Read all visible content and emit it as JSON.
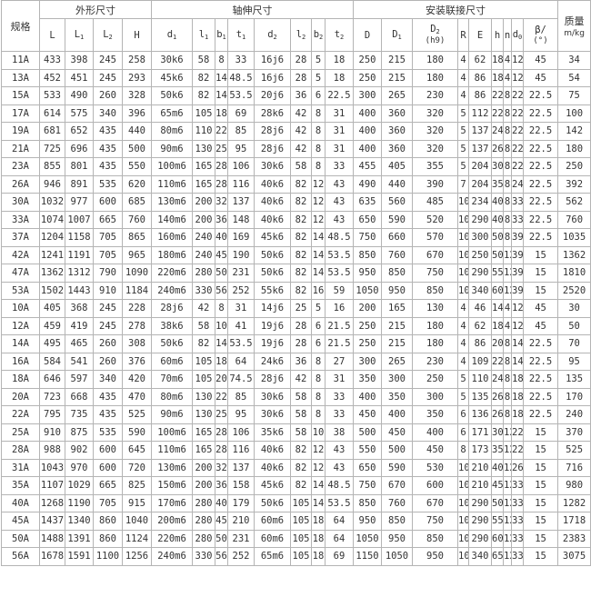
{
  "header": {
    "spec": "规格",
    "groups": {
      "outline": "外形尺寸",
      "shaft": "轴伸尺寸",
      "mount": "安装联接尺寸"
    },
    "mass_title": "质量",
    "mass_unit": "m/kg",
    "columns": [
      {
        "base": "L",
        "sub": ""
      },
      {
        "base": "L",
        "sub": "1"
      },
      {
        "base": "L",
        "sub": "2"
      },
      {
        "base": "H",
        "sub": ""
      },
      {
        "base": "d",
        "sub": "1"
      },
      {
        "base": "l",
        "sub": "1"
      },
      {
        "base": "b",
        "sub": "1"
      },
      {
        "base": "t",
        "sub": "1"
      },
      {
        "base": "d",
        "sub": "2"
      },
      {
        "base": "l",
        "sub": "2"
      },
      {
        "base": "b",
        "sub": "2"
      },
      {
        "base": "t",
        "sub": "2"
      },
      {
        "base": "D",
        "sub": ""
      },
      {
        "base": "D",
        "sub": "1"
      },
      {
        "base": "D",
        "sub": "2",
        "line2": "(h9)"
      },
      {
        "base": "R",
        "sub": ""
      },
      {
        "base": "E",
        "sub": ""
      },
      {
        "base": "h",
        "sub": ""
      },
      {
        "base": "n",
        "sub": ""
      },
      {
        "base": "d",
        "sub": "0"
      },
      {
        "base": "β/",
        "sub": "",
        "line2": "(°)"
      }
    ]
  },
  "rows": [
    [
      "11A",
      "433",
      "398",
      "245",
      "258",
      "30k6",
      "58",
      "8",
      "33",
      "16j6",
      "28",
      "5",
      "18",
      "250",
      "215",
      "180",
      "4",
      "62",
      "18",
      "4",
      "12",
      "45",
      "34"
    ],
    [
      "13A",
      "452",
      "451",
      "245",
      "293",
      "45k6",
      "82",
      "14",
      "48.5",
      "16j6",
      "28",
      "5",
      "18",
      "250",
      "215",
      "180",
      "4",
      "86",
      "18",
      "4",
      "12",
      "45",
      "54"
    ],
    [
      "15A",
      "533",
      "490",
      "260",
      "328",
      "50k6",
      "82",
      "14",
      "53.5",
      "20j6",
      "36",
      "6",
      "22.5",
      "300",
      "265",
      "230",
      "4",
      "86",
      "22",
      "8",
      "22",
      "22.5",
      "75"
    ],
    [
      "17A",
      "614",
      "575",
      "340",
      "396",
      "65m6",
      "105",
      "18",
      "69",
      "28k6",
      "42",
      "8",
      "31",
      "400",
      "360",
      "320",
      "5",
      "112",
      "22",
      "8",
      "22",
      "22.5",
      "100"
    ],
    [
      "19A",
      "681",
      "652",
      "435",
      "440",
      "80m6",
      "110",
      "22",
      "85",
      "28j6",
      "42",
      "8",
      "31",
      "400",
      "360",
      "320",
      "5",
      "137",
      "24",
      "8",
      "22",
      "22.5",
      "142"
    ],
    [
      "21A",
      "725",
      "696",
      "435",
      "500",
      "90m6",
      "130",
      "25",
      "95",
      "28j6",
      "42",
      "8",
      "31",
      "400",
      "360",
      "320",
      "5",
      "137",
      "26",
      "8",
      "22",
      "22.5",
      "180"
    ],
    [
      "23A",
      "855",
      "801",
      "435",
      "550",
      "100m6",
      "165",
      "28",
      "106",
      "30k6",
      "58",
      "8",
      "33",
      "455",
      "405",
      "355",
      "5",
      "204",
      "30",
      "8",
      "22",
      "22.5",
      "250"
    ],
    [
      "26A",
      "946",
      "891",
      "535",
      "620",
      "110m6",
      "165",
      "28",
      "116",
      "40k6",
      "82",
      "12",
      "43",
      "490",
      "440",
      "390",
      "7",
      "204",
      "35",
      "8",
      "24",
      "22.5",
      "392"
    ],
    [
      "30A",
      "1032",
      "977",
      "600",
      "685",
      "130m6",
      "200",
      "32",
      "137",
      "40k6",
      "82",
      "12",
      "43",
      "635",
      "560",
      "485",
      "10",
      "234",
      "40",
      "8",
      "33",
      "22.5",
      "562"
    ],
    [
      "33A",
      "1074",
      "1007",
      "665",
      "760",
      "140m6",
      "200",
      "36",
      "148",
      "40k6",
      "82",
      "12",
      "43",
      "650",
      "590",
      "520",
      "10",
      "290",
      "40",
      "8",
      "33",
      "22.5",
      "760"
    ],
    [
      "37A",
      "1204",
      "1158",
      "705",
      "865",
      "160m6",
      "240",
      "40",
      "169",
      "45k6",
      "82",
      "14",
      "48.5",
      "750",
      "660",
      "570",
      "10",
      "300",
      "50",
      "8",
      "39",
      "22.5",
      "1035"
    ],
    [
      "42A",
      "1241",
      "1191",
      "705",
      "965",
      "180m6",
      "240",
      "45",
      "190",
      "50k6",
      "82",
      "14",
      "53.5",
      "850",
      "760",
      "670",
      "10",
      "250",
      "50",
      "12",
      "39",
      "15",
      "1362"
    ],
    [
      "47A",
      "1362",
      "1312",
      "790",
      "1090",
      "220m6",
      "280",
      "50",
      "231",
      "50k6",
      "82",
      "14",
      "53.5",
      "950",
      "850",
      "750",
      "10",
      "290",
      "55",
      "12",
      "39",
      "15",
      "1810"
    ],
    [
      "53A",
      "1502",
      "1443",
      "910",
      "1184",
      "240m6",
      "330",
      "56",
      "252",
      "55k6",
      "82",
      "16",
      "59",
      "1050",
      "950",
      "850",
      "10",
      "340",
      "60",
      "12",
      "39",
      "15",
      "2520"
    ],
    [
      "10A",
      "405",
      "368",
      "245",
      "228",
      "28j6",
      "42",
      "8",
      "31",
      "14j6",
      "25",
      "5",
      "16",
      "200",
      "165",
      "130",
      "4",
      "46",
      "14",
      "4",
      "12",
      "45",
      "30"
    ],
    [
      "12A",
      "459",
      "419",
      "245",
      "278",
      "38k6",
      "58",
      "10",
      "41",
      "19j6",
      "28",
      "6",
      "21.5",
      "250",
      "215",
      "180",
      "4",
      "62",
      "18",
      "4",
      "12",
      "45",
      "50"
    ],
    [
      "14A",
      "495",
      "465",
      "260",
      "308",
      "50k6",
      "82",
      "14",
      "53.5",
      "19j6",
      "28",
      "6",
      "21.5",
      "250",
      "215",
      "180",
      "4",
      "86",
      "20",
      "8",
      "14",
      "22.5",
      "70"
    ],
    [
      "16A",
      "584",
      "541",
      "260",
      "376",
      "60m6",
      "105",
      "18",
      "64",
      "24k6",
      "36",
      "8",
      "27",
      "300",
      "265",
      "230",
      "4",
      "109",
      "22",
      "8",
      "14",
      "22.5",
      "95"
    ],
    [
      "18A",
      "646",
      "597",
      "340",
      "420",
      "70m6",
      "105",
      "20",
      "74.5",
      "28j6",
      "42",
      "8",
      "31",
      "350",
      "300",
      "250",
      "5",
      "110",
      "24",
      "8",
      "18",
      "22.5",
      "135"
    ],
    [
      "20A",
      "723",
      "668",
      "435",
      "470",
      "80m6",
      "130",
      "22",
      "85",
      "30k6",
      "58",
      "8",
      "33",
      "400",
      "350",
      "300",
      "5",
      "135",
      "26",
      "8",
      "18",
      "22.5",
      "170"
    ],
    [
      "22A",
      "795",
      "735",
      "435",
      "525",
      "90m6",
      "130",
      "25",
      "95",
      "30k6",
      "58",
      "8",
      "33",
      "450",
      "400",
      "350",
      "6",
      "136",
      "26",
      "8",
      "18",
      "22.5",
      "240"
    ],
    [
      "25A",
      "910",
      "875",
      "535",
      "590",
      "100m6",
      "165",
      "28",
      "106",
      "35k6",
      "58",
      "10",
      "38",
      "500",
      "450",
      "400",
      "6",
      "171",
      "30",
      "12",
      "22",
      "15",
      "370"
    ],
    [
      "28A",
      "988",
      "902",
      "600",
      "645",
      "110m6",
      "165",
      "28",
      "116",
      "40k6",
      "82",
      "12",
      "43",
      "550",
      "500",
      "450",
      "8",
      "173",
      "35",
      "12",
      "22",
      "15",
      "525"
    ],
    [
      "31A",
      "1043",
      "970",
      "600",
      "720",
      "130m6",
      "200",
      "32",
      "137",
      "40k6",
      "82",
      "12",
      "43",
      "650",
      "590",
      "530",
      "10",
      "210",
      "40",
      "12",
      "26",
      "15",
      "716"
    ],
    [
      "35A",
      "1107",
      "1029",
      "665",
      "825",
      "150m6",
      "200",
      "36",
      "158",
      "45k6",
      "82",
      "14",
      "48.5",
      "750",
      "670",
      "600",
      "10",
      "210",
      "45",
      "12",
      "33",
      "15",
      "980"
    ],
    [
      "40A",
      "1268",
      "1190",
      "705",
      "915",
      "170m6",
      "280",
      "40",
      "179",
      "50k6",
      "105",
      "14",
      "53.5",
      "850",
      "760",
      "670",
      "10",
      "290",
      "50",
      "12",
      "33",
      "15",
      "1282"
    ],
    [
      "45A",
      "1437",
      "1340",
      "860",
      "1040",
      "200m6",
      "280",
      "45",
      "210",
      "60m6",
      "105",
      "18",
      "64",
      "950",
      "850",
      "750",
      "10",
      "290",
      "55",
      "12",
      "33",
      "15",
      "1718"
    ],
    [
      "50A",
      "1488",
      "1391",
      "860",
      "1124",
      "220m6",
      "280",
      "50",
      "231",
      "60m6",
      "105",
      "18",
      "64",
      "1050",
      "950",
      "850",
      "10",
      "290",
      "60",
      "12",
      "33",
      "15",
      "2383"
    ],
    [
      "56A",
      "1678",
      "1591",
      "1100",
      "1256",
      "240m6",
      "330",
      "56",
      "252",
      "65m6",
      "105",
      "18",
      "69",
      "1150",
      "1050",
      "950",
      "10",
      "340",
      "65",
      "12",
      "33",
      "15",
      "3075"
    ]
  ]
}
